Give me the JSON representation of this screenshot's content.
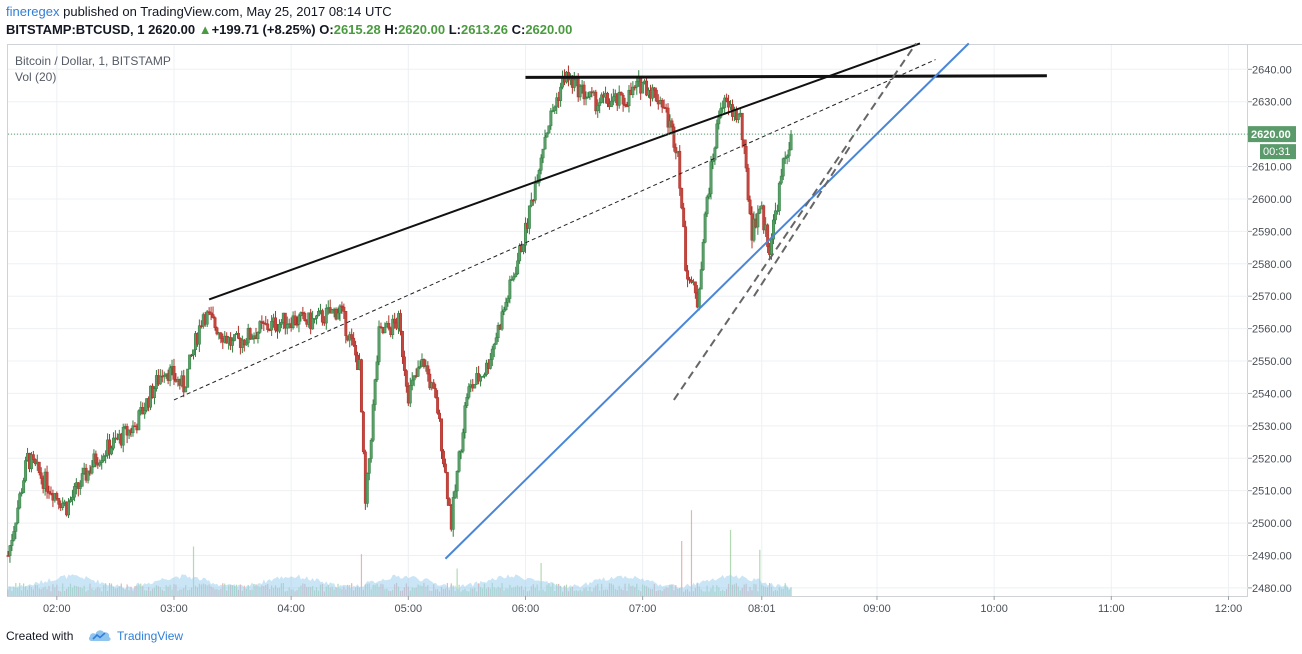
{
  "header": {
    "author": "fineregex",
    "published_text": "published on TradingView.com, May 25, 2017 08:14 UTC",
    "symbol": "BITSTAMP:BTCUSD, 1",
    "last": "2620.00",
    "arrow": "▲",
    "change": "+199.71 (+8.25%)",
    "o_label": "O:",
    "o_value": "2615.28",
    "h_label": "H:",
    "h_value": "2620.00",
    "l_label": "L:",
    "l_value": "2613.26",
    "c_label": "C:",
    "c_value": "2620.00"
  },
  "legend": {
    "series_title": "Bitcoin / Dollar, 1, BITSTAMP",
    "volume_title": "Vol (20)"
  },
  "footer": {
    "created_with": "Created with",
    "brand": "TradingView",
    "brand_icon": "tradingview-cloud-logo-icon"
  },
  "colors": {
    "up": "#2f7f3f",
    "up_fill": "#5b9e6a",
    "down": "#b0302a",
    "down_fill": "#c3473f",
    "trend_blue": "#4a86d8",
    "trend_black": "#111111",
    "current_price_bg": "#5b9a6a",
    "volume_area": "#9fd0ec"
  },
  "chart_data": {
    "type": "candlestick",
    "symbol": "BITSTAMP:BTCUSD",
    "interval": "1",
    "x_range": [
      "01:35",
      "12:10"
    ],
    "x_ticks": [
      "02:00",
      "03:00",
      "04:00",
      "05:00",
      "06:00",
      "07:00",
      "08:01",
      "09:00",
      "10:00",
      "11:00",
      "12:00"
    ],
    "y_range": [
      2477.5,
      2647.5
    ],
    "y_ticks": [
      2480,
      2490,
      2500,
      2510,
      2520,
      2530,
      2540,
      2550,
      2560,
      2570,
      2580,
      2590,
      2600,
      2610,
      2620,
      2630,
      2640
    ],
    "y_tick_labels": [
      "2480.00",
      "2490.00",
      "2500.00",
      "2510.00",
      "2520.00",
      "2530.00",
      "2540.00",
      "2550.00",
      "2560.00",
      "2570.00",
      "2580.00",
      "2590.00",
      "2600.00",
      "2610.00",
      "2620.00",
      "2630.00",
      "2640.00"
    ],
    "current_price": 2620.0,
    "current_price_label": "2620.00",
    "countdown_label": "00:31",
    "price_path": [
      [
        "01:35",
        2490
      ],
      [
        "01:45",
        2520
      ],
      [
        "01:55",
        2512
      ],
      [
        "02:05",
        2505
      ],
      [
        "02:20",
        2520
      ],
      [
        "02:40",
        2530
      ],
      [
        "02:55",
        2548
      ],
      [
        "03:05",
        2542
      ],
      [
        "03:15",
        2565
      ],
      [
        "03:30",
        2555
      ],
      [
        "03:45",
        2560
      ],
      [
        "04:00",
        2563
      ],
      [
        "04:10",
        2562
      ],
      [
        "04:25",
        2566
      ],
      [
        "04:35",
        2548
      ],
      [
        "04:38",
        2505
      ],
      [
        "04:45",
        2558
      ],
      [
        "04:55",
        2562
      ],
      [
        "05:00",
        2540
      ],
      [
        "05:08",
        2550
      ],
      [
        "05:15",
        2535
      ],
      [
        "05:22",
        2500
      ],
      [
        "05:30",
        2540
      ],
      [
        "05:40",
        2548
      ],
      [
        "05:50",
        2568
      ],
      [
        "06:00",
        2590
      ],
      [
        "06:10",
        2620
      ],
      [
        "06:20",
        2638
      ],
      [
        "06:35",
        2630
      ],
      [
        "06:50",
        2630
      ],
      [
        "07:00",
        2636
      ],
      [
        "07:10",
        2630
      ],
      [
        "07:18",
        2615
      ],
      [
        "07:22",
        2580
      ],
      [
        "07:28",
        2568
      ],
      [
        "07:33",
        2600
      ],
      [
        "07:40",
        2630
      ],
      [
        "07:50",
        2625
      ],
      [
        "07:56",
        2590
      ],
      [
        "08:00",
        2598
      ],
      [
        "08:05",
        2585
      ],
      [
        "08:12",
        2610
      ],
      [
        "08:16",
        2620
      ]
    ],
    "volume_spikes": [
      [
        "03:10",
        0.45
      ],
      [
        "04:36",
        0.38
      ],
      [
        "05:25",
        0.25
      ],
      [
        "06:08",
        0.3
      ],
      [
        "07:20",
        0.5
      ],
      [
        "07:25",
        0.78
      ],
      [
        "07:45",
        0.6
      ],
      [
        "08:00",
        0.42
      ]
    ],
    "drawings": [
      {
        "style": "solid-black",
        "from": [
          "03:18",
          2569
        ],
        "to": [
          "09:22",
          2648
        ]
      },
      {
        "style": "dashed-black",
        "from": [
          "03:00",
          2538
        ],
        "to": [
          "09:30",
          2643
        ]
      },
      {
        "style": "solid-black-thick",
        "from": [
          "06:00",
          2637.5
        ],
        "to": [
          "10:27",
          2638
        ]
      },
      {
        "style": "solid-blue",
        "from": [
          "05:19",
          2489
        ],
        "to": [
          "09:47",
          2648
        ]
      },
      {
        "style": "dashed-gray",
        "from": [
          "07:16",
          2538
        ],
        "to": [
          "09:20",
          2648
        ]
      },
      {
        "style": "dashed-gray",
        "from": [
          "07:57",
          2570
        ],
        "to": [
          "08:46",
          2616
        ]
      }
    ]
  }
}
